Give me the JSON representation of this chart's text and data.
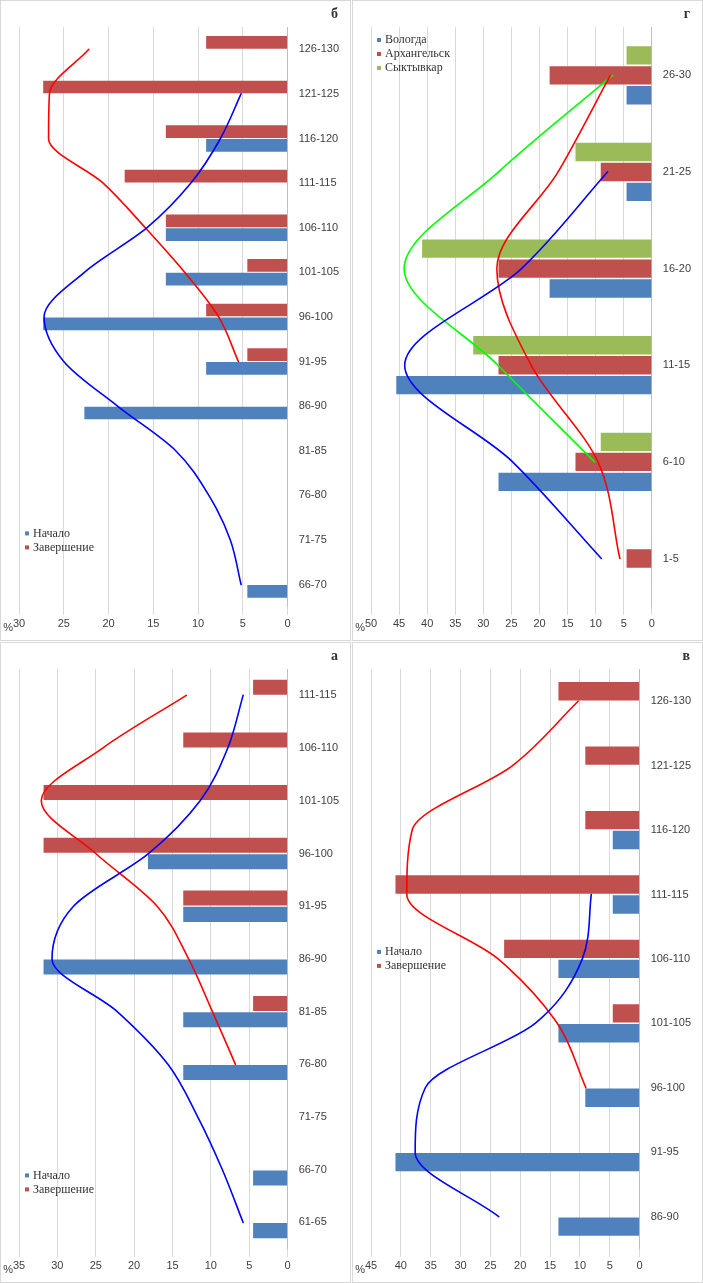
{
  "chart_data": [
    {
      "type": "bar",
      "orientation": "horizontal",
      "xlabel": "%",
      "annotations": [
        "а"
      ],
      "grid": "x",
      "legend": "bottom left",
      "marker": "none",
      "xlim": [
        35,
        0
      ],
      "xticks": [
        35,
        30,
        25,
        20,
        15,
        10,
        5,
        0
      ],
      "categories": [
        "111-115",
        "106-110",
        "101-105",
        "96-100",
        "91-95",
        "86-90",
        "81-85",
        "76-80",
        "71-75",
        "66-70",
        "61-65"
      ],
      "series": [
        {
          "name": "Начало",
          "color": "#4f81bd",
          "values": [
            0,
            0,
            0,
            18.2,
            13.6,
            31.8,
            13.6,
            13.6,
            0,
            4.5,
            4.5
          ]
        },
        {
          "name": "Завершение",
          "color": "#c0504d",
          "values": [
            4.5,
            13.6,
            31.8,
            31.8,
            13.6,
            0,
            4.5,
            0,
            0,
            0,
            0
          ]
        },
        {
          "type": "line",
          "color": "#0000ff",
          "values": [
            5.8,
            7.8,
            11.4,
            18.1,
            27.9,
            30.7,
            22.2,
            15.6,
            11.7,
            8.5,
            5.8
          ]
        },
        {
          "type": "line",
          "color": "#ff0000",
          "values": [
            13.2,
            24.1,
            32.1,
            25,
            17,
            12.9,
            9.8,
            6.8,
            null,
            null,
            null
          ]
        }
      ]
    },
    {
      "type": "bar",
      "orientation": "horizontal",
      "xlabel": "%",
      "annotations": [
        "б"
      ],
      "grid": "x",
      "legend": "bottom left",
      "marker": "none",
      "xlim": [
        30,
        0
      ],
      "xticks": [
        30,
        25,
        20,
        15,
        10,
        5,
        0
      ],
      "categories": [
        "126-130",
        "121-125",
        "116-120",
        "111-115",
        "106-110",
        "101-105",
        "96-100",
        "91-95",
        "86-90",
        "81-85",
        "76-80",
        "71-75",
        "66-70"
      ],
      "series": [
        {
          "name": "Начало",
          "color": "#4f81bd",
          "values": [
            0,
            0,
            9.1,
            0,
            13.6,
            13.6,
            27.3,
            9.1,
            22.7,
            0,
            0,
            0,
            4.5
          ]
        },
        {
          "name": "Завершение",
          "color": "#c0504d",
          "values": [
            9.1,
            27.3,
            13.6,
            18.2,
            13.6,
            4.5,
            9.1,
            4.5,
            0,
            0,
            0,
            0,
            0
          ]
        },
        {
          "type": "line",
          "color": "#0000ff",
          "values": [
            null,
            5.2,
            7.5,
            10.8,
            15.7,
            22.7,
            27.2,
            25,
            19,
            12.5,
            8.8,
            6.4,
            5.2
          ]
        },
        {
          "type": "line",
          "color": "#ff0000",
          "values": [
            22.2,
            26.6,
            26.7,
            20.6,
            15.9,
            11.5,
            7.7,
            5.5,
            null,
            null,
            null,
            null,
            null
          ]
        }
      ]
    },
    {
      "type": "bar",
      "orientation": "horizontal",
      "xlabel": "%",
      "annotations": [
        "в"
      ],
      "grid": "x",
      "legend": "left",
      "marker": "none",
      "xlim": [
        45,
        0
      ],
      "xticks": [
        45,
        40,
        35,
        30,
        25,
        20,
        15,
        10,
        5,
        0
      ],
      "categories": [
        "126-130",
        "121-125",
        "116-120",
        "111-115",
        "106-110",
        "101-105",
        "96-100",
        "91-95",
        "86-90"
      ],
      "series": [
        {
          "name": "Начало",
          "color": "#4f81bd",
          "values": [
            0,
            0,
            4.5,
            4.5,
            13.6,
            13.6,
            9.1,
            40.9,
            13.6
          ]
        },
        {
          "name": "Завершение",
          "color": "#c0504d",
          "values": [
            13.6,
            9.1,
            9.1,
            40.9,
            22.7,
            4.5,
            0,
            0,
            0
          ]
        },
        {
          "type": "line",
          "color": "#0000ff",
          "values": [
            null,
            null,
            null,
            8.1,
            9.6,
            17.5,
            35.9,
            37.6,
            23.6
          ]
        },
        {
          "type": "line",
          "color": "#ff0000",
          "values": [
            10.3,
            21.3,
            38.1,
            39,
            23.7,
            13.8,
            9,
            null,
            null
          ]
        }
      ]
    },
    {
      "type": "bar",
      "orientation": "horizontal",
      "xlabel": "%",
      "annotations": [
        "г"
      ],
      "grid": "x",
      "legend": "top left",
      "marker": "none",
      "xlim": [
        50,
        0
      ],
      "xticks": [
        50,
        45,
        40,
        35,
        30,
        25,
        20,
        15,
        10,
        5,
        0
      ],
      "categories": [
        "26-30",
        "21-25",
        "16-20",
        "11-15",
        "6-10",
        "1-5"
      ],
      "series": [
        {
          "name": "Вологда",
          "color": "#4f81bd",
          "values": [
            4.5,
            4.5,
            18.2,
            45.5,
            27.3,
            0
          ]
        },
        {
          "name": "Архангельск",
          "color": "#c0504d",
          "values": [
            18.2,
            9.1,
            27.3,
            27.3,
            13.6,
            4.5
          ]
        },
        {
          "name": "Сыктывкар",
          "color": "#9bbb59",
          "values": [
            4.5,
            13.6,
            40.9,
            31.8,
            9.1,
            0
          ]
        },
        {
          "type": "line",
          "color": "#0000ff",
          "values": [
            null,
            7.9,
            23.2,
            44,
            24.8,
            9
          ]
        },
        {
          "type": "line",
          "color": "#ff0000",
          "values": [
            7.4,
            16.7,
            27.6,
            21.5,
            9.6,
            5.7
          ]
        },
        {
          "type": "line",
          "color": "#00ff00",
          "values": [
            7,
            27.3,
            44.1,
            27.4,
            10.2,
            null
          ]
        }
      ]
    }
  ]
}
